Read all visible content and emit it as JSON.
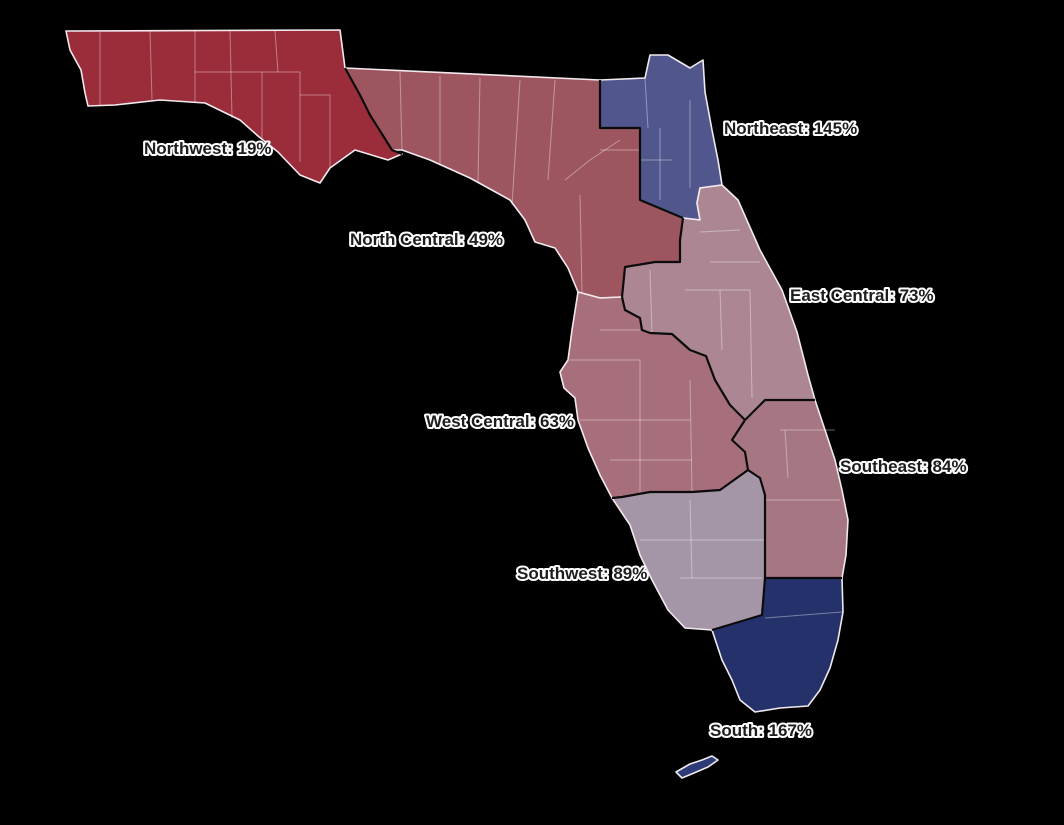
{
  "map": {
    "title": "",
    "regions": [
      {
        "id": "northwest",
        "label": "Northwest: 19%",
        "value": 19,
        "fill": "#a12f3c"
      },
      {
        "id": "north-central",
        "label": "North Central: 49%",
        "value": 49,
        "fill": "#a35a63"
      },
      {
        "id": "northeast",
        "label": "Northeast: 145%",
        "value": 145,
        "fill": "#545a92"
      },
      {
        "id": "east-central",
        "label": "East Central: 73%",
        "value": 73,
        "fill": "#b38c99"
      },
      {
        "id": "west-central",
        "label": "West Central: 63%",
        "value": 63,
        "fill": "#ae7380"
      },
      {
        "id": "southeast",
        "label": "Southeast: 84%",
        "value": 84,
        "fill": "#ae7b88"
      },
      {
        "id": "southwest",
        "label": "Southwest: 89%",
        "value": 89,
        "fill": "#ab9cad"
      },
      {
        "id": "south",
        "label": "South: 167%",
        "value": 167,
        "fill": "#27336f"
      },
      {
        "id": "keys",
        "label": "",
        "value": 167,
        "fill": "#2f3d7e"
      }
    ]
  }
}
